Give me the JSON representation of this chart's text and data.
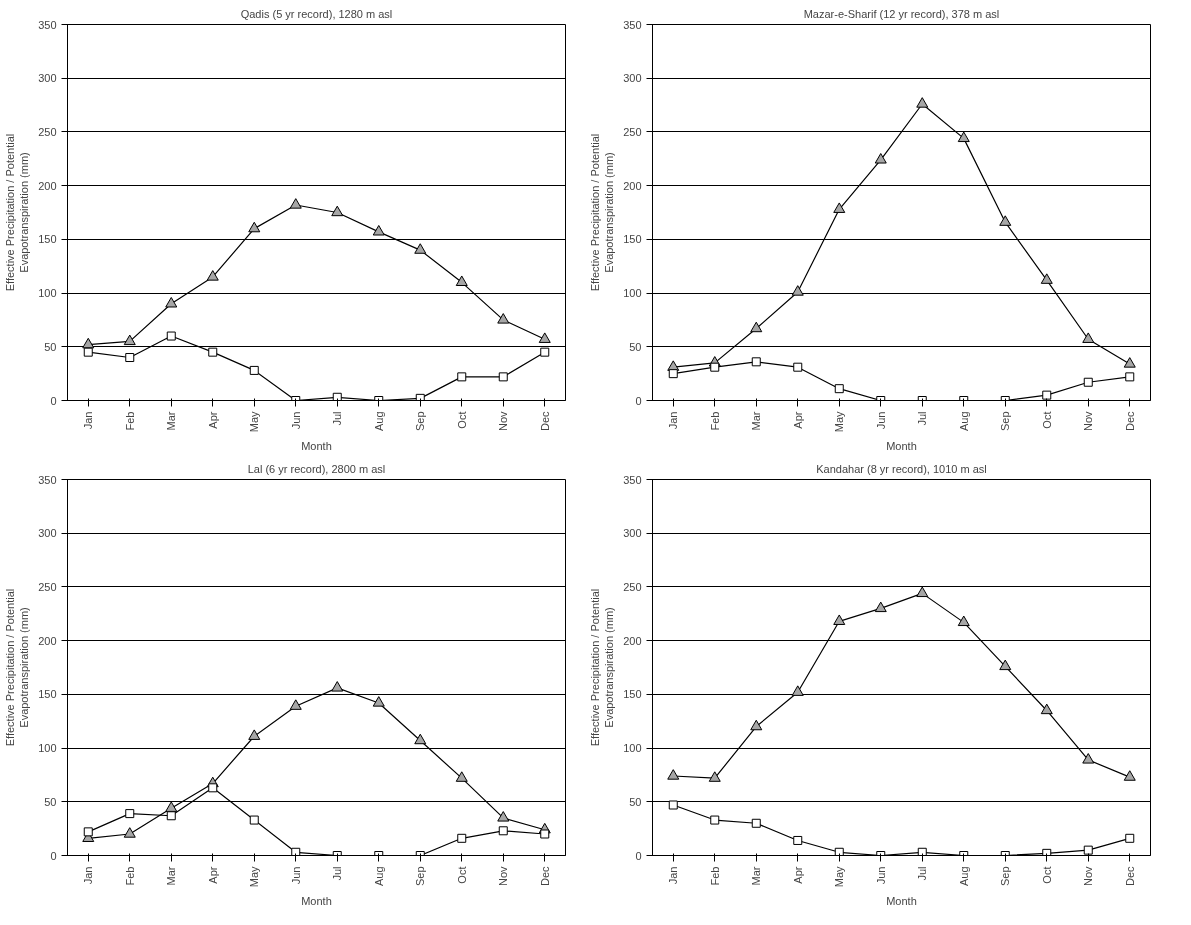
{
  "chart_data": [
    {
      "type": "line",
      "title": "Qadis (5 yr record), 1280 m asl",
      "xlabel": "Month",
      "ylabel": "Effective Precipitation / Potential\nEvapotranspiration (mm)",
      "categories": [
        "Jan",
        "Feb",
        "Mar",
        "Apr",
        "May",
        "Jun",
        "Jul",
        "Aug",
        "Sep",
        "Oct",
        "Nov",
        "Dec"
      ],
      "ylim": [
        0,
        350
      ],
      "yticks": [
        0,
        50,
        100,
        150,
        200,
        250,
        300,
        350
      ],
      "grid": "y",
      "series": [
        {
          "color": "#a6a6a6",
          "marker": "triangle",
          "values": [
            52,
            55,
            90,
            115,
            160,
            182,
            175,
            157,
            140,
            110,
            75,
            57
          ]
        },
        {
          "color": "#ffffff",
          "marker": "square",
          "values": [
            45,
            40,
            60,
            45,
            28,
            0,
            3,
            0,
            2,
            22,
            22,
            45
          ]
        }
      ]
    },
    {
      "type": "line",
      "title": "Mazar-e-Sharif (12 yr record), 378 m asl",
      "xlabel": "Month",
      "ylabel": "Effective Precipitation / Potential\nEvapotranspiration (mm)",
      "categories": [
        "Jan",
        "Feb",
        "Mar",
        "Apr",
        "May",
        "Jun",
        "Jul",
        "Aug",
        "Sep",
        "Oct",
        "Nov",
        "Dec"
      ],
      "ylim": [
        0,
        350
      ],
      "yticks": [
        0,
        50,
        100,
        150,
        200,
        250,
        300,
        350
      ],
      "grid": "y",
      "series": [
        {
          "color": "#a6a6a6",
          "marker": "triangle",
          "values": [
            31,
            35,
            67,
            101,
            178,
            224,
            276,
            244,
            166,
            112,
            57,
            34
          ]
        },
        {
          "color": "#ffffff",
          "marker": "square",
          "values": [
            25,
            31,
            36,
            31,
            11,
            0,
            0,
            0,
            0,
            5,
            17,
            22
          ]
        }
      ]
    },
    {
      "type": "line",
      "title": "Lal (6 yr record), 2800 m asl",
      "xlabel": "Month",
      "ylabel": "Effective Precipitation / Potential\nEvapotranspiration (mm)",
      "categories": [
        "Jan",
        "Feb",
        "Mar",
        "Apr",
        "May",
        "Jun",
        "Jul",
        "Aug",
        "Sep",
        "Oct",
        "Nov",
        "Dec"
      ],
      "ylim": [
        0,
        350
      ],
      "yticks": [
        0,
        50,
        100,
        150,
        200,
        250,
        300,
        350
      ],
      "grid": "y",
      "series": [
        {
          "color": "#a6a6a6",
          "marker": "triangle",
          "values": [
            16,
            20,
            44,
            67,
            111,
            139,
            156,
            142,
            107,
            72,
            35,
            24
          ]
        },
        {
          "color": "#ffffff",
          "marker": "square",
          "values": [
            22,
            39,
            37,
            63,
            33,
            3,
            0,
            0,
            0,
            16,
            23,
            20
          ]
        }
      ]
    },
    {
      "type": "line",
      "title": "Kandahar (8 yr record), 1010 m asl",
      "xlabel": "Month",
      "ylabel": "Effective Precipitation / Potential\nEvapotranspiration (mm)",
      "categories": [
        "Jan",
        "Feb",
        "Mar",
        "Apr",
        "May",
        "Jun",
        "Jul",
        "Aug",
        "Sep",
        "Oct",
        "Nov",
        "Dec"
      ],
      "ylim": [
        0,
        350
      ],
      "yticks": [
        0,
        50,
        100,
        150,
        200,
        250,
        300,
        350
      ],
      "grid": "y",
      "series": [
        {
          "color": "#a6a6a6",
          "marker": "triangle",
          "values": [
            74,
            72,
            120,
            152,
            218,
            230,
            244,
            217,
            176,
            135,
            89,
            73
          ]
        },
        {
          "color": "#ffffff",
          "marker": "square",
          "values": [
            47,
            33,
            30,
            14,
            3,
            0,
            3,
            0,
            0,
            2,
            5,
            16
          ]
        }
      ]
    }
  ]
}
